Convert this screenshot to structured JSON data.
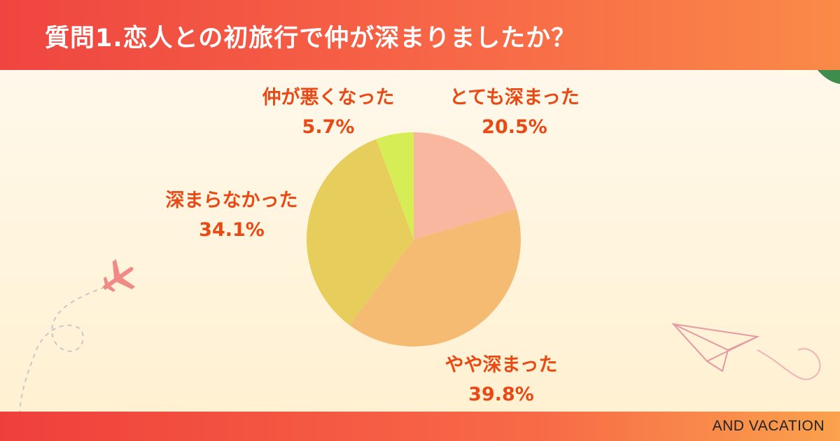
{
  "title": "質問1.恋人との初旅行で仲が深まりましたか？",
  "brand": "AND VACATION",
  "icons": [
    "hibiscus-flower-icon",
    "airplane-icon",
    "paper-plane-icon"
  ],
  "colors": {
    "header": "#f05a44",
    "label": "#e94a15",
    "background": "#fff6e0"
  },
  "chart_data": {
    "type": "pie",
    "title": "質問1.恋人との初旅行で仲が深まりましたか？",
    "start": "12 o'clock, clockwise",
    "slices": [
      {
        "label": "とても深まった",
        "value": 20.5,
        "display": "20.5%",
        "color": "#f9b7a0"
      },
      {
        "label": "やや深まった",
        "value": 39.8,
        "display": "39.8%",
        "color": "#f5bb72"
      },
      {
        "label": "深まらなかった",
        "value": 34.1,
        "display": "34.1%",
        "color": "#e6cd5c"
      },
      {
        "label": "仲が悪くなった",
        "value": 5.7,
        "display": "5.7%",
        "color": "#d6ed55"
      }
    ]
  }
}
